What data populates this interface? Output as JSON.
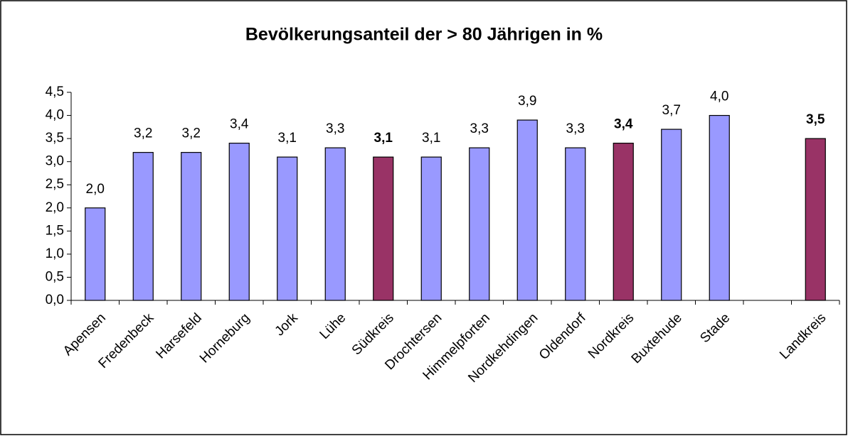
{
  "chart_data": {
    "type": "bar",
    "title": "Bevölkerungsanteil der > 80 Jährigen in %",
    "categories": [
      "Apensen",
      "Fredenbeck",
      "Harsefeld",
      "Horneburg",
      "Jork",
      "Lühe",
      "Südkreis",
      "Drochtersen",
      "Himmelpforten",
      "Nordkehdingen",
      "Oldendorf",
      "Nordkreis",
      "Buxtehude",
      "Stade",
      null,
      "Landkreis"
    ],
    "values": [
      2.0,
      3.2,
      3.2,
      3.4,
      3.1,
      3.3,
      3.1,
      3.1,
      3.3,
      3.9,
      3.3,
      3.4,
      3.7,
      4.0,
      null,
      3.5
    ],
    "value_labels": [
      "2,0",
      "3,2",
      "3,2",
      "3,4",
      "3,1",
      "3,3",
      "3,1",
      "3,1",
      "3,3",
      "3,9",
      "3,3",
      "3,4",
      "3,7",
      "4,0",
      null,
      "3,5"
    ],
    "colors": [
      "#9999ff",
      "#9999ff",
      "#9999ff",
      "#9999ff",
      "#9999ff",
      "#9999ff",
      "#993366",
      "#9999ff",
      "#9999ff",
      "#9999ff",
      "#9999ff",
      "#993366",
      "#9999ff",
      "#9999ff",
      null,
      "#993366"
    ],
    "highlight_color": "#993366",
    "ylim": [
      0,
      4.5
    ],
    "yticks": [
      {
        "value": 0,
        "label": "0,0"
      },
      {
        "value": 0.5,
        "label": "0,5"
      },
      {
        "value": 1,
        "label": "1,0"
      },
      {
        "value": 1.5,
        "label": "1,5"
      },
      {
        "value": 2,
        "label": "2,0"
      },
      {
        "value": 2.5,
        "label": "2,5"
      },
      {
        "value": 3,
        "label": "3,0"
      },
      {
        "value": 3.5,
        "label": "3,5"
      },
      {
        "value": 4,
        "label": "4,0"
      },
      {
        "value": 4.5,
        "label": "4,5"
      }
    ],
    "grid": false
  }
}
